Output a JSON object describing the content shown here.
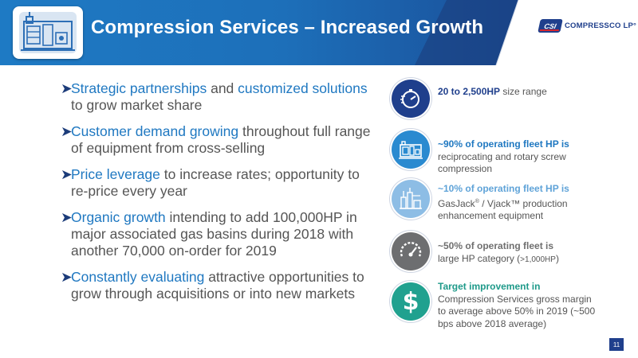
{
  "header": {
    "title": "Compression Services – Increased Growth",
    "logo_badge": "CSI",
    "logo_text": "COMPRESSCO LP°"
  },
  "bullets": [
    {
      "parts": [
        {
          "text": "Strategic partnerships",
          "hl": true
        },
        {
          "text": " and ",
          "hl": false
        },
        {
          "text": "customized solutions",
          "hl": true
        },
        {
          "text": " to grow market share",
          "hl": false
        }
      ]
    },
    {
      "parts": [
        {
          "text": "Customer demand growing",
          "hl": true
        },
        {
          "text": " throughout full range of equipment from cross-selling",
          "hl": false
        }
      ]
    },
    {
      "parts": [
        {
          "text": "Price leverage",
          "hl": true
        },
        {
          "text": " to increase rates; opportunity to re-price every year",
          "hl": false
        }
      ]
    },
    {
      "parts": [
        {
          "text": "Organic growth",
          "hl": true
        },
        {
          "text": " intending to add 100,000HP in major associated gas basins during 2018 with another 70,000 on-order for 2019",
          "hl": false
        }
      ]
    },
    {
      "parts": [
        {
          "text": "Constantly evaluating",
          "hl": true
        },
        {
          "text": " attractive opportunities to grow through acquisitions or into new markets",
          "hl": false
        }
      ]
    }
  ],
  "features": [
    {
      "icon": "stopwatch-icon",
      "bold": "20 to 2,500HP",
      "rest": " size range"
    },
    {
      "icon": "compressor-unit-icon",
      "bold": "~90% of operating fleet HP is",
      "rest": "reciprocating and rotary screw compression"
    },
    {
      "icon": "production-facility-icon",
      "bold": "~10% of operating fleet HP is",
      "rest_a": "GasJack",
      "sup": "®",
      "rest_b": " / Vjack™ production enhancement equipment"
    },
    {
      "icon": "gauge-icon",
      "bold": "~50% of operating fleet is",
      "rest_a": "large HP category (",
      "rest_small": ">1,000HP",
      "rest_b": ")"
    },
    {
      "icon": "dollar-sign-icon",
      "bold": "Target improvement in",
      "rest": "Compression Services gross margin to average above 50% in 2019 (~500 bps above 2018 average)"
    }
  ],
  "page_number": "11",
  "colors": {
    "header_blue": "#1e74bd",
    "header_navy": "#1b3b78",
    "highlight_blue": "#1f78c1",
    "body_gray": "#555555",
    "icon_navy": "#1f3f8c",
    "icon_blue": "#2a8ad0",
    "icon_light_blue": "#8dbde5",
    "icon_gray": "#6d6e70",
    "icon_green": "#20a18f"
  }
}
